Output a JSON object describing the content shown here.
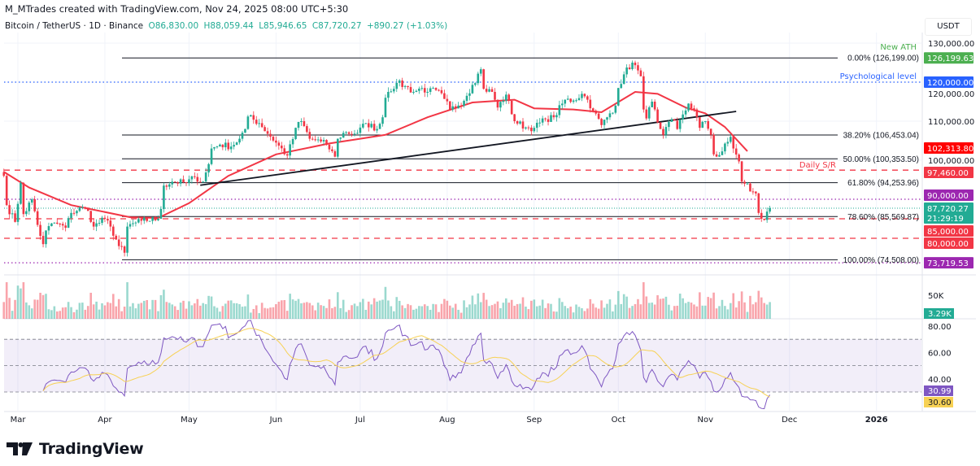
{
  "header": {
    "attribution": "M_MTrades created with TradingView.com, Nov 24, 2025 08:00 UTC+5:30",
    "symbol": "Bitcoin / TetherUS · 1D · Binance",
    "open": "O86,830.00",
    "high": "H88,059.44",
    "low": "L85,946.65",
    "close": "C87,720.27",
    "change": "+890.27 (+1.03%)"
  },
  "currency": "USDT",
  "brand": "TradingView",
  "colors": {
    "up": "#22ab94",
    "down": "#f23645",
    "ma": "#f23645",
    "rsi": "#7e57c2",
    "rsi_ma": "#f7d154",
    "ath": "#4caf50",
    "psych": "#2962ff",
    "support": "#f23645",
    "purple": "#9c27b0"
  },
  "price_axis": [
    "130,000.00",
    "120,000.00",
    "110,000.00",
    "100,000.00"
  ],
  "annotations": {
    "new_ath": "New ATH",
    "psych": "Psychological level",
    "daily_sr": "Daily S/R"
  },
  "fib_labels": [
    {
      "text": "0.00% (126,199.00)",
      "price": 126199
    },
    {
      "text": "38.20% (106,453.04)",
      "price": 106453.04
    },
    {
      "text": "50.00% (100,353.50)",
      "price": 100353.5
    },
    {
      "text": "61.80% (94,253.96)",
      "price": 94253.96
    },
    {
      "text": "78.60% (85,569.87)",
      "price": 85569.87
    },
    {
      "text": "100.00% (74,508.00)",
      "price": 74508
    }
  ],
  "badges": [
    {
      "text": "126,199.63",
      "price": 126199.63,
      "color": "#4caf50"
    },
    {
      "text": "120,000.00",
      "price": 120000,
      "color": "#2962ff"
    },
    {
      "text": "102,313.80",
      "price": 102313.8,
      "color": "#ff0000"
    },
    {
      "text": "97,460.00",
      "price": 97460,
      "color": "#f23645"
    },
    {
      "text": "90,000.00",
      "price": 90000,
      "color": "#9c27b0"
    },
    {
      "text": "85,000.00",
      "price": 85000,
      "color": "#f23645"
    },
    {
      "text": "80,000.00",
      "price": 80000,
      "color": "#f23645"
    },
    {
      "text": "73,719.53",
      "price": 73719.53,
      "color": "#9c27b0"
    }
  ],
  "last_price": {
    "text": "87,720.27",
    "countdown": "21:29:19",
    "price": 87720.27,
    "color": "#22ab94"
  },
  "volume": {
    "axis_label": "50K",
    "last": "3.29K"
  },
  "rsi": {
    "axis": [
      "80.00",
      "60.00",
      "40.00"
    ],
    "value": "30.99",
    "ma": "30.60"
  },
  "x_axis": [
    "Mar",
    "Apr",
    "May",
    "Jun",
    "Jul",
    "Aug",
    "Sep",
    "Oct",
    "Nov",
    "Dec",
    "2026"
  ],
  "chart_data": {
    "type": "candlestick",
    "title": "Bitcoin / TetherUS · 1D · Binance",
    "interval": "1D",
    "x_range": [
      "2025-02-24",
      "2026-01-20"
    ],
    "ylim": [
      72000,
      132000
    ],
    "grid": true,
    "price_closes": [
      [
        "2025-02-24",
        96000
      ],
      [
        "2025-02-25",
        88500
      ],
      [
        "2025-02-28",
        84200
      ],
      [
        "2025-03-02",
        94200
      ],
      [
        "2025-03-03",
        86200
      ],
      [
        "2025-03-06",
        90000
      ],
      [
        "2025-03-09",
        80600
      ],
      [
        "2025-03-10",
        78500
      ],
      [
        "2025-03-11",
        82000
      ],
      [
        "2025-03-14",
        84000
      ],
      [
        "2025-03-18",
        82700
      ],
      [
        "2025-03-20",
        86500
      ],
      [
        "2025-03-24",
        88000
      ],
      [
        "2025-03-26",
        87000
      ],
      [
        "2025-03-28",
        83000
      ],
      [
        "2025-04-01",
        85000
      ],
      [
        "2025-04-03",
        83000
      ],
      [
        "2025-04-06",
        78000
      ],
      [
        "2025-04-08",
        76300
      ],
      [
        "2025-04-09",
        83000
      ],
      [
        "2025-04-14",
        84500
      ],
      [
        "2025-04-20",
        85000
      ],
      [
        "2025-04-21",
        87500
      ],
      [
        "2025-04-22",
        93500
      ],
      [
        "2025-04-25",
        94500
      ],
      [
        "2025-04-30",
        94200
      ],
      [
        "2025-05-03",
        95700
      ],
      [
        "2025-05-06",
        94500
      ],
      [
        "2025-05-08",
        99000
      ],
      [
        "2025-05-09",
        103000
      ],
      [
        "2025-05-12",
        104000
      ],
      [
        "2025-05-16",
        103500
      ],
      [
        "2025-05-19",
        105500
      ],
      [
        "2025-05-21",
        108000
      ],
      [
        "2025-05-22",
        111200
      ],
      [
        "2025-05-26",
        109500
      ],
      [
        "2025-06-01",
        104500
      ],
      [
        "2025-06-05",
        101200
      ],
      [
        "2025-06-09",
        109800
      ],
      [
        "2025-06-10",
        110000
      ],
      [
        "2025-06-13",
        105500
      ],
      [
        "2025-06-17",
        104800
      ],
      [
        "2025-06-19",
        104000
      ],
      [
        "2025-06-22",
        100900
      ],
      [
        "2025-06-23",
        105500
      ],
      [
        "2025-06-25",
        107000
      ],
      [
        "2025-06-30",
        107000
      ],
      [
        "2025-07-03",
        109500
      ],
      [
        "2025-07-07",
        108000
      ],
      [
        "2025-07-09",
        111000
      ],
      [
        "2025-07-10",
        116000
      ],
      [
        "2025-07-11",
        117500
      ],
      [
        "2025-07-14",
        119800
      ],
      [
        "2025-07-17",
        119000
      ],
      [
        "2025-07-20",
        117500
      ],
      [
        "2025-07-23",
        118500
      ],
      [
        "2025-07-25",
        117500
      ],
      [
        "2025-07-28",
        118000
      ],
      [
        "2025-07-31",
        115700
      ],
      [
        "2025-08-02",
        113000
      ],
      [
        "2025-08-05",
        114000
      ],
      [
        "2025-08-08",
        116500
      ],
      [
        "2025-08-10",
        119300
      ],
      [
        "2025-08-13",
        123300
      ],
      [
        "2025-08-14",
        118300
      ],
      [
        "2025-08-17",
        117500
      ],
      [
        "2025-08-19",
        113500
      ],
      [
        "2025-08-22",
        116800
      ],
      [
        "2025-08-25",
        110000
      ],
      [
        "2025-08-29",
        108400
      ],
      [
        "2025-09-01",
        108300
      ],
      [
        "2025-09-05",
        110500
      ],
      [
        "2025-09-08",
        111000
      ],
      [
        "2025-09-12",
        115500
      ],
      [
        "2025-09-15",
        115300
      ],
      [
        "2025-09-18",
        117000
      ],
      [
        "2025-09-20",
        115500
      ],
      [
        "2025-09-22",
        112700
      ],
      [
        "2025-09-25",
        109000
      ],
      [
        "2025-09-28",
        112000
      ],
      [
        "2025-09-30",
        114000
      ],
      [
        "2025-10-01",
        118500
      ],
      [
        "2025-10-03",
        122000
      ],
      [
        "2025-10-06",
        125000
      ],
      [
        "2025-10-08",
        123000
      ],
      [
        "2025-10-09",
        121500
      ],
      [
        "2025-10-10",
        113000
      ],
      [
        "2025-10-11",
        110700
      ],
      [
        "2025-10-13",
        115000
      ],
      [
        "2025-10-14",
        113000
      ],
      [
        "2025-10-16",
        108000
      ],
      [
        "2025-10-17",
        106500
      ],
      [
        "2025-10-20",
        110500
      ],
      [
        "2025-10-22",
        108000
      ],
      [
        "2025-10-26",
        114500
      ],
      [
        "2025-10-28",
        113000
      ],
      [
        "2025-10-30",
        108300
      ],
      [
        "2025-11-01",
        110000
      ],
      [
        "2025-11-03",
        106500
      ],
      [
        "2025-11-04",
        101500
      ],
      [
        "2025-11-06",
        101300
      ],
      [
        "2025-11-09",
        104700
      ],
      [
        "2025-11-10",
        106000
      ],
      [
        "2025-11-11",
        103000
      ],
      [
        "2025-11-13",
        99700
      ],
      [
        "2025-11-14",
        94500
      ],
      [
        "2025-11-16",
        94000
      ],
      [
        "2025-11-17",
        92000
      ],
      [
        "2025-11-19",
        91500
      ],
      [
        "2025-11-20",
        86500
      ],
      [
        "2025-11-21",
        85000
      ],
      [
        "2025-11-22",
        84700
      ],
      [
        "2025-11-23",
        86830
      ],
      [
        "2025-11-24",
        87720.27
      ]
    ],
    "moving_average": [
      [
        "2025-02-24",
        97000
      ],
      [
        "2025-03-05",
        93000
      ],
      [
        "2025-03-20",
        88500
      ],
      [
        "2025-04-10",
        85400
      ],
      [
        "2025-04-20",
        85200
      ],
      [
        "2025-05-01",
        89000
      ],
      [
        "2025-05-15",
        96000
      ],
      [
        "2025-06-01",
        101500
      ],
      [
        "2025-06-20",
        104300
      ],
      [
        "2025-07-01",
        105500
      ],
      [
        "2025-07-10",
        106500
      ],
      [
        "2025-07-25",
        111000
      ],
      [
        "2025-08-10",
        114800
      ],
      [
        "2025-08-25",
        115500
      ],
      [
        "2025-09-01",
        113300
      ],
      [
        "2025-09-15",
        113000
      ],
      [
        "2025-09-25",
        112300
      ],
      [
        "2025-10-07",
        117500
      ],
      [
        "2025-10-15",
        117000
      ],
      [
        "2025-10-25",
        113500
      ],
      [
        "2025-11-01",
        112000
      ],
      [
        "2025-11-08",
        108500
      ],
      [
        "2025-11-16",
        102314
      ]
    ],
    "trendline": [
      [
        "2025-05-05",
        93600
      ],
      [
        "2025-11-12",
        112500
      ]
    ],
    "horizontal_levels": [
      {
        "price": 126199,
        "style": "solid-fib"
      },
      {
        "price": 120000,
        "style": "dotted-blue"
      },
      {
        "price": 106453.04,
        "style": "solid-fib"
      },
      {
        "price": 100353.5,
        "style": "solid-fib"
      },
      {
        "price": 97460,
        "style": "dashed-red"
      },
      {
        "price": 94253.96,
        "style": "solid-fib"
      },
      {
        "price": 90000,
        "style": "dotted-purple"
      },
      {
        "price": 85569.87,
        "style": "solid-fib"
      },
      {
        "price": 85000,
        "style": "dashed-red"
      },
      {
        "price": 80000,
        "style": "dashed-red"
      },
      {
        "price": 74508,
        "style": "solid-fib"
      },
      {
        "price": 73719.53,
        "style": "dotted-purple"
      }
    ],
    "rsi_levels": [
      70,
      50,
      30
    ]
  }
}
